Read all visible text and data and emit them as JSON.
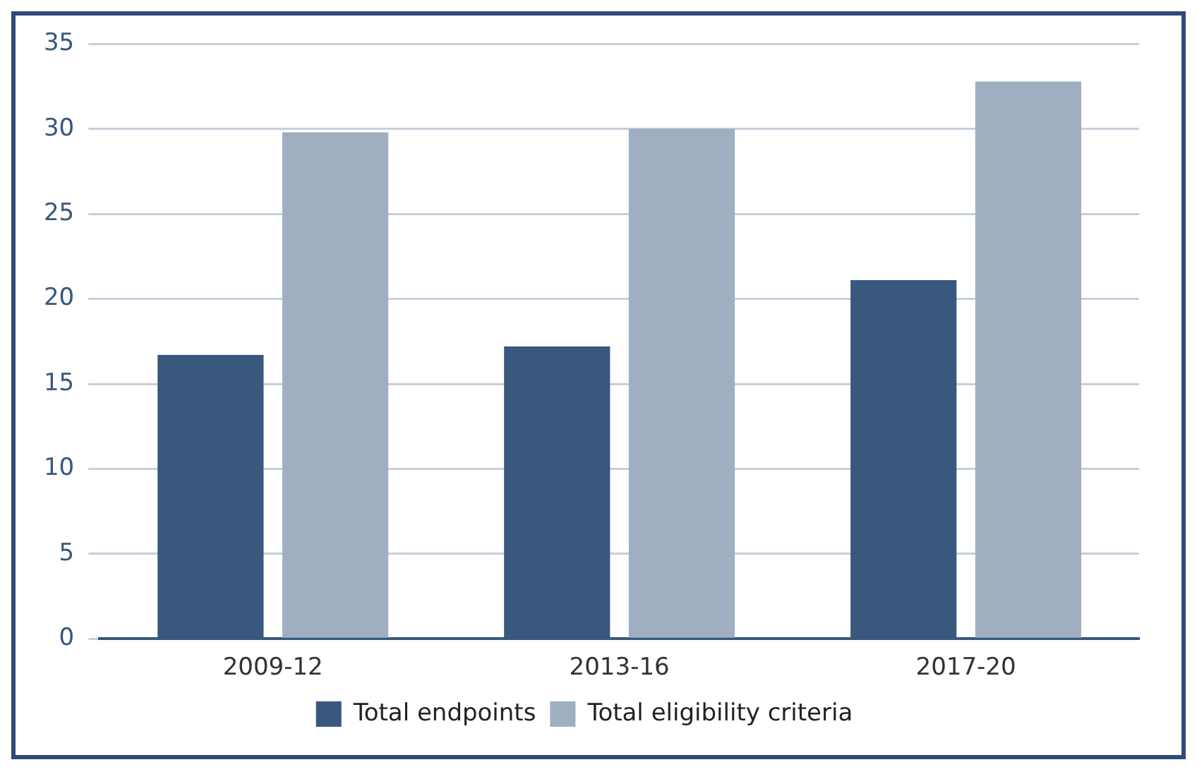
{
  "chart_data": {
    "type": "bar",
    "categories": [
      "2009-12",
      "2013-16",
      "2017-20"
    ],
    "series": [
      {
        "name": "Total endpoints",
        "color": "#38587e",
        "values": [
          16.7,
          17.2,
          21.1
        ]
      },
      {
        "name": "Total eligibility criteria",
        "color": "#9fafc1",
        "values": [
          29.8,
          30.0,
          32.8
        ]
      }
    ],
    "ylim": [
      0,
      35
    ],
    "yticks": [
      0,
      5,
      10,
      15,
      20,
      25,
      30,
      35
    ],
    "grid": "y",
    "legend": "bottom"
  }
}
